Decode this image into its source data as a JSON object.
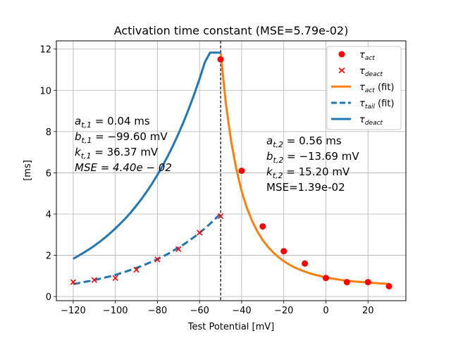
{
  "chart_data": {
    "type": "scatter",
    "title": "Activation time constant (MSE=5.79e-02)",
    "xlabel": "Test Potential [mV]",
    "ylabel": "[ms]",
    "xlim": [
      -128,
      38
    ],
    "ylim": [
      -0.2,
      12.4
    ],
    "xticks": [
      -120,
      -100,
      -80,
      -60,
      -40,
      -20,
      0,
      20
    ],
    "yticks": [
      0,
      2,
      4,
      6,
      8,
      10,
      12
    ],
    "grid": true,
    "legend_position": "top-right",
    "vline": {
      "x": -50,
      "style": "dashed",
      "color": "#000000"
    },
    "series": [
      {
        "name": "τact",
        "kind": "points",
        "marker": "circle",
        "color": "#ff0000",
        "x": [
          -50,
          -40,
          -30,
          -20,
          -10,
          0,
          10,
          20,
          30
        ],
        "y": [
          11.5,
          6.1,
          3.4,
          2.2,
          1.6,
          0.9,
          0.7,
          0.7,
          0.5
        ]
      },
      {
        "name": "τdeact",
        "kind": "points",
        "marker": "x",
        "color": "#ff0000",
        "x": [
          -120,
          -110,
          -100,
          -90,
          -80,
          -70,
          -60,
          -50
        ],
        "y": [
          0.7,
          0.8,
          0.9,
          1.3,
          1.8,
          2.3,
          3.1,
          3.9
        ]
      },
      {
        "name": "τact (fit)",
        "kind": "line",
        "style": "solid",
        "color": "#ff7f0e",
        "x": [
          -50,
          -47.5,
          -45,
          -42.5,
          -40,
          -37.5,
          -35,
          -32.5,
          -30,
          -27.5,
          -25,
          -22.5,
          -20,
          -17.5,
          -15,
          -12.5,
          -10,
          -7.5,
          -5,
          -2.5,
          0,
          2.5,
          5,
          7.5,
          10,
          12.5,
          15,
          17.5,
          20,
          22.5,
          25,
          27.5,
          30
        ],
        "y": [
          11.83,
          9.36,
          7.53,
          6.16,
          5.11,
          4.3,
          3.66,
          3.15,
          2.74,
          2.41,
          2.14,
          1.91,
          1.72,
          1.56,
          1.42,
          1.31,
          1.21,
          1.12,
          1.05,
          0.99,
          0.93,
          0.88,
          0.84,
          0.8,
          0.77,
          0.74,
          0.72,
          0.7,
          0.68,
          0.66,
          0.64,
          0.63,
          0.62
        ]
      },
      {
        "name": "τtail (fit)",
        "kind": "line",
        "style": "dashed",
        "color": "#1f77b4",
        "x": [
          -120,
          -117.5,
          -115,
          -112.5,
          -110,
          -107.5,
          -105,
          -102.5,
          -100,
          -97.5,
          -95,
          -92.5,
          -90,
          -87.5,
          -85,
          -82.5,
          -80,
          -77.5,
          -75,
          -72.5,
          -70,
          -67.5,
          -65,
          -62.5,
          -60,
          -57.5,
          -55,
          -52.5,
          -50
        ],
        "y": [
          0.61,
          0.65,
          0.7,
          0.75,
          0.8,
          0.86,
          0.92,
          0.98,
          1.05,
          1.13,
          1.21,
          1.3,
          1.39,
          1.48,
          1.59,
          1.7,
          1.81,
          1.94,
          2.07,
          2.22,
          2.37,
          2.53,
          2.71,
          2.89,
          3.09,
          3.3,
          3.53,
          3.77,
          4.03
        ]
      },
      {
        "name": "τdeact",
        "kind": "line",
        "style": "solid",
        "color": "#1f77b4",
        "x": [
          -120,
          -117.5,
          -115,
          -112.5,
          -110,
          -107.5,
          -105,
          -102.5,
          -100,
          -97.5,
          -95,
          -92.5,
          -90,
          -87.5,
          -85,
          -82.5,
          -80,
          -77.5,
          -75,
          -72.5,
          -70,
          -67.5,
          -65,
          -62.5,
          -60,
          -57.5,
          -55,
          -52.5,
          -50
        ],
        "y": [
          1.83,
          1.98,
          2.13,
          2.29,
          2.46,
          2.65,
          2.85,
          3.07,
          3.3,
          3.55,
          3.81,
          4.1,
          4.41,
          4.74,
          5.1,
          5.49,
          5.9,
          6.35,
          6.83,
          7.34,
          7.9,
          8.49,
          9.13,
          9.82,
          10.56,
          11.36,
          11.83,
          11.83,
          11.83
        ]
      }
    ],
    "legend": [
      {
        "label": "τact",
        "sub": "act",
        "suffix": ""
      },
      {
        "label": "τdeact",
        "sub": "deact",
        "suffix": ""
      },
      {
        "label": "τact (fit)",
        "sub": "act",
        "suffix": " (fit)"
      },
      {
        "label": "τtail (fit)",
        "sub": "tail",
        "suffix": " (fit)"
      },
      {
        "label": "τdeact",
        "sub": "deact",
        "suffix": ""
      }
    ],
    "annotations": {
      "left": [
        "a_{t,1} = 0.04 ms",
        "b_{t,1} = −99.60 mV",
        "k_{t,1} = 36.37 mV",
        "MSE = 4.40e − 02"
      ],
      "right": [
        "a_{t,2} = 0.56 ms",
        "b_{t,2} = −13.69 mV",
        "k_{t,2} = 15.20 mV",
        "MSE=1.39e-02"
      ]
    }
  }
}
